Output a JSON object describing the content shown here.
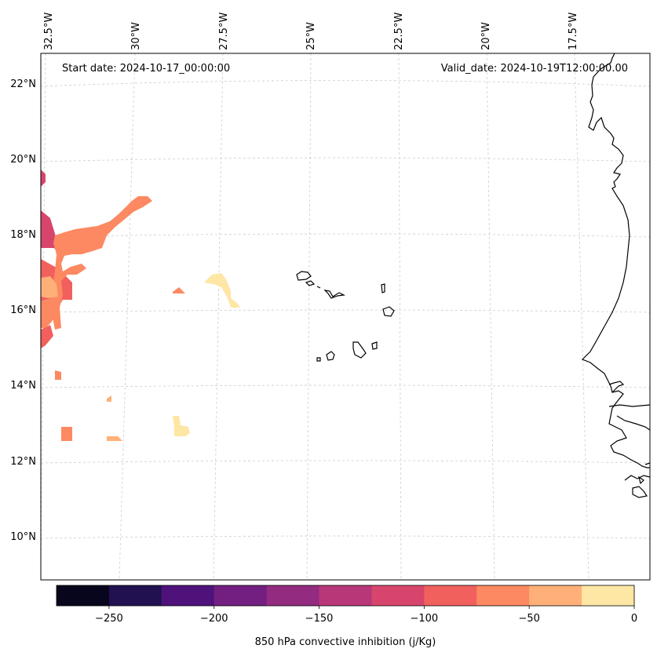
{
  "header": {
    "start_date": "Start date: 2024-10-17_00:00:00",
    "valid_date": "Valid_date: 2024-10-19T12:00:00.00"
  },
  "longitude_labels": [
    "32.5°W",
    "30°W",
    "27.5°W",
    "25°W",
    "22.5°W",
    "20°W",
    "17.5°W"
  ],
  "latitude_labels": [
    "22°N",
    "20°N",
    "18°N",
    "16°N",
    "14°N",
    "12°N",
    "10°N"
  ],
  "colorbar": {
    "label": "850 hPa convective inhibition (j/Kg)",
    "ticks": [
      "−250",
      "−200",
      "−150",
      "−100",
      "−50",
      "0"
    ],
    "levels": [
      -275,
      -250,
      -225,
      -200,
      -175,
      -150,
      -125,
      -100,
      -75,
      -50,
      -25,
      0
    ],
    "colors": [
      "#07061c",
      "#221150",
      "#4f127b",
      "#721f81",
      "#932b80",
      "#b73779",
      "#d8456c",
      "#f1605d",
      "#fc8961",
      "#feb078",
      "#fee6a4"
    ]
  },
  "colors": {
    "gridline": "#cccccc",
    "coastline": "#000000"
  }
}
